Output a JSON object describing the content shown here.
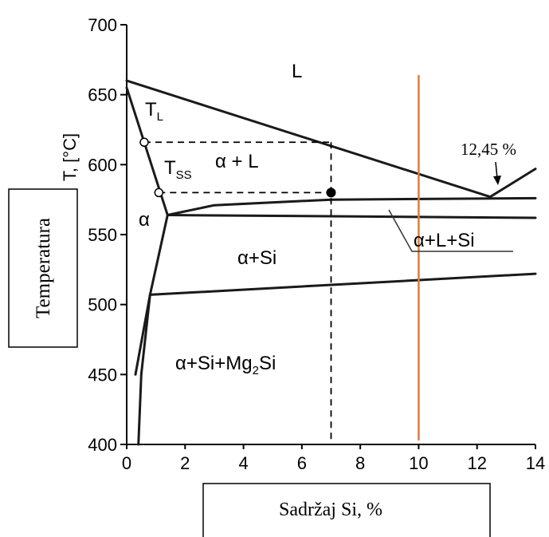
{
  "chart_data": {
    "type": "phase-diagram",
    "xlim": [
      0,
      14
    ],
    "ylim": [
      400,
      700
    ],
    "x_ticks": [
      "0",
      "2",
      "4",
      "6",
      "8",
      "10",
      "12",
      "14"
    ],
    "y_ticks": [
      "400",
      "450",
      "500",
      "550",
      "600",
      "650",
      "700"
    ],
    "y_axis_label": "T, [°C]",
    "y_box_label": "Temperatura",
    "x_box_label": "Sadržaj Si, %",
    "regions": {
      "liquid": "L",
      "alpha_liquid": "α + L",
      "alpha": "α",
      "alpha_si": "α+Si",
      "alpha_si_mg": {
        "main": "α+Si+Mg",
        "sub": "2",
        "tail": "Si"
      },
      "alpha_l_si": "α+L+Si"
    },
    "point_labels": {
      "tl": {
        "main": "T",
        "sub": "L"
      },
      "tss": {
        "main": "T",
        "sub": "SS"
      },
      "eutectic": "12,45 %"
    },
    "lines": {
      "liquidus": [
        [
          0,
          660
        ],
        [
          12.45,
          577
        ],
        [
          14,
          597
        ]
      ],
      "solidus": [
        [
          0,
          655
        ],
        [
          1.4,
          564
        ]
      ],
      "eutectic_upper": [
        [
          1.4,
          564
        ],
        [
          3,
          571
        ],
        [
          7,
          575
        ],
        [
          14,
          576
        ]
      ],
      "eutectic_lower": [
        [
          1.4,
          564
        ],
        [
          14,
          562
        ]
      ],
      "solvus_lower": [
        [
          1.4,
          564
        ],
        [
          0.8,
          507
        ],
        [
          0.3,
          450
        ]
      ],
      "solvus_si_mg": [
        [
          0.8,
          507
        ],
        [
          14,
          522
        ]
      ],
      "left_boundary": [
        [
          0.8,
          507
        ],
        [
          0.5,
          450
        ],
        [
          0.4,
          400
        ]
      ]
    },
    "markers": {
      "tl_point": [
        0.6,
        616
      ],
      "tss_point": [
        1.1,
        580
      ],
      "alloy_point": [
        7.0,
        580
      ]
    },
    "guide_lines": {
      "alloy_x": 7.0,
      "tl_temp": 616,
      "tss_temp": 580,
      "marker_line_x": 10.0
    },
    "colors": {
      "curve": "#1a1a1a",
      "marker_line": "#e07b39",
      "axis": "#000000"
    }
  }
}
